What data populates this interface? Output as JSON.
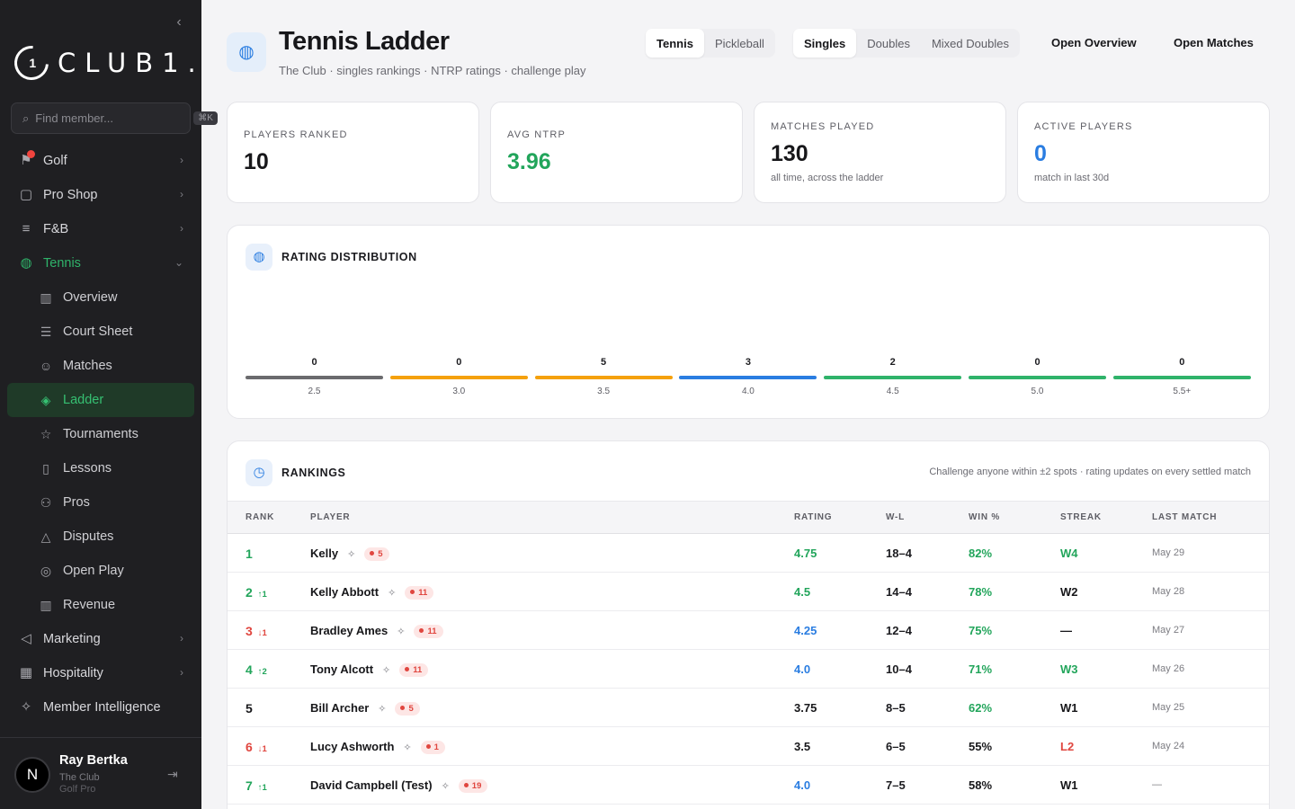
{
  "sidebar": {
    "collapse_icon": "chevron-left-icon",
    "logo": {
      "mark": "1",
      "text": "CLUB1."
    },
    "search": {
      "placeholder": "Find member...",
      "shortcut": "⌘K"
    },
    "nav": [
      {
        "label": "Golf",
        "icon": "flag-icon",
        "badge_dot": true
      },
      {
        "label": "Pro Shop",
        "icon": "bag-icon"
      },
      {
        "label": "F&B",
        "icon": "utensils-icon"
      },
      {
        "label": "Tennis",
        "icon": "tennis-ball-icon",
        "open": true
      }
    ],
    "tennis_sub": [
      {
        "label": "Overview",
        "icon": "bar-chart-icon"
      },
      {
        "label": "Court Sheet",
        "icon": "list-icon"
      },
      {
        "label": "Matches",
        "icon": "smile-icon"
      },
      {
        "label": "Ladder",
        "icon": "layers-icon",
        "active": true
      },
      {
        "label": "Tournaments",
        "icon": "star-icon"
      },
      {
        "label": "Lessons",
        "icon": "book-icon"
      },
      {
        "label": "Pros",
        "icon": "users-icon"
      },
      {
        "label": "Disputes",
        "icon": "warning-icon"
      },
      {
        "label": "Open Play",
        "icon": "check-circle-icon"
      },
      {
        "label": "Revenue",
        "icon": "bar-chart-icon"
      }
    ],
    "nav_after": [
      {
        "label": "Marketing",
        "icon": "megaphone-icon"
      },
      {
        "label": "Hospitality",
        "icon": "building-icon"
      },
      {
        "label": "Member Intelligence",
        "icon": "sparkle-icon",
        "no_chevron": true
      }
    ],
    "user": {
      "initial": "N",
      "name": "Ray Bertka",
      "club": "The Club",
      "role": "Golf Pro"
    }
  },
  "header": {
    "title": "Tennis Ladder",
    "subtitle": "The Club · singles rankings · NTRP ratings · challenge play",
    "sport_tabs": [
      "Tennis",
      "Pickleball"
    ],
    "format_tabs": [
      "Singles",
      "Doubles",
      "Mixed Doubles"
    ],
    "links": [
      "Open Overview",
      "Open Matches"
    ]
  },
  "stats": [
    {
      "label": "PLAYERS RANKED",
      "value": "10",
      "note": "",
      "color": "#17171a"
    },
    {
      "label": "AVG NTRP",
      "value": "3.96",
      "note": "",
      "color": "#22a55b"
    },
    {
      "label": "MATCHES PLAYED",
      "value": "130",
      "note": "all time, across the ladder",
      "color": "#17171a"
    },
    {
      "label": "ACTIVE PLAYERS",
      "value": "0",
      "note": "match in last 30d",
      "color": "#2a7de1"
    }
  ],
  "distribution": {
    "title": "RATING DISTRIBUTION",
    "bins": [
      {
        "label": "2.5",
        "count": "0",
        "color": "#6b6b6e"
      },
      {
        "label": "3.0",
        "count": "0",
        "color": "#f5a10b"
      },
      {
        "label": "3.5",
        "count": "5",
        "color": "#f5a10b"
      },
      {
        "label": "4.0",
        "count": "3",
        "color": "#2a7de1"
      },
      {
        "label": "4.5",
        "count": "2",
        "color": "#2fb36a"
      },
      {
        "label": "5.0",
        "count": "0",
        "color": "#2fb36a"
      },
      {
        "label": "5.5+",
        "count": "0",
        "color": "#2fb36a"
      }
    ]
  },
  "rankings": {
    "title": "RANKINGS",
    "note": "Challenge anyone within ±2 spots · rating updates on every settled match",
    "columns": [
      "RANK",
      "PLAYER",
      "RATING",
      "W-L",
      "WIN %",
      "STREAK",
      "LAST MATCH"
    ],
    "rows": [
      {
        "rank": "1",
        "move": "",
        "dir": "",
        "name": "Kelly",
        "pill": "5",
        "rating": "4.75",
        "rating_color": "#22a55b",
        "wl": "18–4",
        "win": "82%",
        "win_color": "#22a55b",
        "streak": "W4",
        "streak_color": "#22a55b",
        "last": "May 29"
      },
      {
        "rank": "2",
        "move": "↑1",
        "dir": "up",
        "name": "Kelly Abbott",
        "pill": "11",
        "rating": "4.5",
        "rating_color": "#22a55b",
        "wl": "14–4",
        "win": "78%",
        "win_color": "#22a55b",
        "streak": "W2",
        "streak_color": "#17171a",
        "last": "May 28"
      },
      {
        "rank": "3",
        "move": "↓1",
        "dir": "down",
        "name": "Bradley Ames",
        "pill": "11",
        "rating": "4.25",
        "rating_color": "#2a7de1",
        "wl": "12–4",
        "win": "75%",
        "win_color": "#22a55b",
        "streak": "—",
        "streak_color": "#17171a",
        "last": "May 27"
      },
      {
        "rank": "4",
        "move": "↑2",
        "dir": "up",
        "name": "Tony Alcott",
        "pill": "11",
        "rating": "4.0",
        "rating_color": "#2a7de1",
        "wl": "10–4",
        "win": "71%",
        "win_color": "#22a55b",
        "streak": "W3",
        "streak_color": "#22a55b",
        "last": "May 26"
      },
      {
        "rank": "5",
        "move": "",
        "dir": "",
        "name": "Bill Archer",
        "pill": "5",
        "rating": "3.75",
        "rating_color": "#17171a",
        "wl": "8–5",
        "win": "62%",
        "win_color": "#22a55b",
        "streak": "W1",
        "streak_color": "#17171a",
        "last": "May 25"
      },
      {
        "rank": "6",
        "move": "↓1",
        "dir": "down",
        "name": "Lucy Ashworth",
        "pill": "1",
        "rating": "3.5",
        "rating_color": "#17171a",
        "wl": "6–5",
        "win": "55%",
        "win_color": "#17171a",
        "streak": "L2",
        "streak_color": "#e0463f",
        "last": "May 24"
      },
      {
        "rank": "7",
        "move": "↑1",
        "dir": "up",
        "name": "David Campbell (Test)",
        "pill": "19",
        "rating": "4.0",
        "rating_color": "#2a7de1",
        "wl": "7–5",
        "win": "58%",
        "win_color": "#17171a",
        "streak": "W1",
        "streak_color": "#17171a",
        "last": "—"
      }
    ]
  }
}
